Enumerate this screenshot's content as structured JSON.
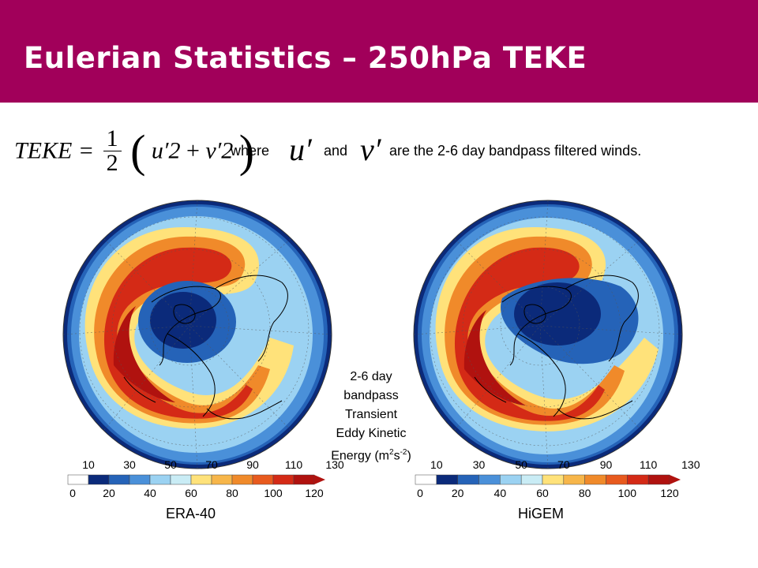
{
  "slide": {
    "title": "Eulerian Statistics – 250hPa TEKE",
    "header_color": "#a1005a"
  },
  "equation": {
    "lhs": "TEKE =",
    "fraction_numerator": "1",
    "fraction_denominator": "2",
    "term1": "u′2",
    "plus": "+",
    "term2": "v′2",
    "where": "where",
    "u_symbol": "u′",
    "and": "and",
    "v_symbol": "v′",
    "description": "are the 2-6 day bandpass filtered winds."
  },
  "colorbar": {
    "upper_labels": [
      "10",
      "30",
      "50",
      "70",
      "90",
      "110",
      "130"
    ],
    "lower_labels": [
      "0",
      "20",
      "40",
      "60",
      "80",
      "100",
      "120"
    ],
    "colors": [
      "#ffffff",
      "#0b2a7a",
      "#2563b8",
      "#4a90d9",
      "#9bd2f2",
      "#c9ecf5",
      "#ffe27a",
      "#f7b64a",
      "#f08a2a",
      "#e85a1e",
      "#d42a16",
      "#b0120f"
    ]
  },
  "center_caption": {
    "line1": "2-6 day",
    "line2": "bandpass",
    "line3": "Transient",
    "line4": "Eddy Kinetic",
    "line5_prefix": "Energy (m",
    "line5_sup1": "2",
    "line5_mid": "s",
    "line5_sup2": "-2",
    "line5_suffix": ")"
  },
  "panels": [
    {
      "label": "ERA-40"
    },
    {
      "label": "HiGEM"
    }
  ]
}
